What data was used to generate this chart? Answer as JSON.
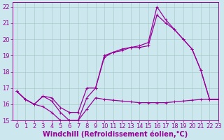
{
  "background_color": "#cce8ee",
  "grid_color": "#aacccc",
  "line_color": "#990099",
  "xlabel": "Windchill (Refroidissement éolien,°C)",
  "xlabel_fontsize": 7,
  "tick_fontsize": 6,
  "xlim": [
    -0.5,
    23
  ],
  "ylim": [
    15,
    22.3
  ],
  "yticks": [
    15,
    16,
    17,
    18,
    19,
    20,
    21,
    22
  ],
  "xticks": [
    0,
    1,
    2,
    3,
    4,
    5,
    6,
    7,
    8,
    9,
    10,
    11,
    12,
    13,
    14,
    15,
    16,
    17,
    18,
    19,
    20,
    21,
    22,
    23
  ],
  "line1_x": [
    0,
    1,
    2,
    3,
    4,
    5,
    6,
    7,
    8,
    9,
    10,
    11,
    12,
    13,
    14,
    15,
    16,
    17,
    18,
    19,
    20,
    21,
    22,
    23
  ],
  "line1_y": [
    16.8,
    16.3,
    16.0,
    15.85,
    15.5,
    15.0,
    15.0,
    15.0,
    15.7,
    16.4,
    16.3,
    16.25,
    16.2,
    16.15,
    16.1,
    16.1,
    16.1,
    16.1,
    16.15,
    16.2,
    16.25,
    16.3,
    16.3,
    16.3
  ],
  "line2_x": [
    0,
    1,
    2,
    3,
    4,
    5,
    6,
    7,
    8,
    9,
    10,
    11,
    12,
    13,
    14,
    15,
    16,
    17,
    18,
    19,
    20,
    21,
    22,
    23
  ],
  "line2_y": [
    16.8,
    16.3,
    16.0,
    16.5,
    16.2,
    15.5,
    15.0,
    15.0,
    16.4,
    17.0,
    19.0,
    19.2,
    19.3,
    19.5,
    19.5,
    19.6,
    21.5,
    21.0,
    20.6,
    20.0,
    19.4,
    18.1,
    16.3,
    16.3
  ],
  "line3_x": [
    0,
    1,
    2,
    3,
    4,
    5,
    6,
    7,
    8,
    9,
    10,
    11,
    12,
    13,
    14,
    15,
    16,
    17,
    18,
    19,
    20,
    21,
    22,
    23
  ],
  "line3_y": [
    16.8,
    16.3,
    16.0,
    16.5,
    16.4,
    15.8,
    15.5,
    15.5,
    17.0,
    17.0,
    18.9,
    19.2,
    19.4,
    19.5,
    19.6,
    19.8,
    22.0,
    21.2,
    20.6,
    20.0,
    19.4,
    18.1,
    16.3,
    16.3
  ]
}
